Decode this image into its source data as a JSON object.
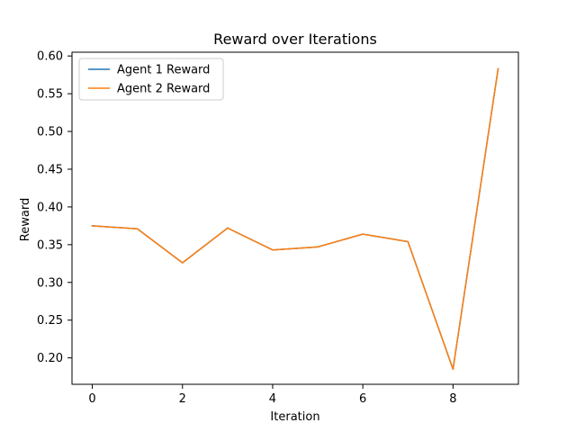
{
  "chart_data": {
    "type": "line",
    "title": "Reward over Iterations",
    "xlabel": "Iteration",
    "ylabel": "Reward",
    "xlim": [
      -0.45,
      9.45
    ],
    "ylim": [
      0.165,
      0.605
    ],
    "xticks": [
      0,
      2,
      4,
      6,
      8
    ],
    "xtick_labels": [
      "0",
      "2",
      "4",
      "6",
      "8"
    ],
    "yticks": [
      0.2,
      0.25,
      0.3,
      0.35,
      0.4,
      0.45,
      0.5,
      0.55,
      0.6
    ],
    "ytick_labels": [
      "0.20",
      "0.25",
      "0.30",
      "0.35",
      "0.40",
      "0.45",
      "0.50",
      "0.55",
      "0.60"
    ],
    "grid": false,
    "legend_position": "top-left",
    "x": [
      0,
      1,
      2,
      3,
      4,
      5,
      6,
      7,
      8,
      9
    ],
    "series": [
      {
        "name": "Agent 1 Reward",
        "color": "#1f77b4",
        "values": [
          0.375,
          0.371,
          0.326,
          0.372,
          0.343,
          0.347,
          0.364,
          0.354,
          0.185,
          0.583
        ]
      },
      {
        "name": "Agent 2 Reward",
        "color": "#ff7f0e",
        "values": [
          0.375,
          0.371,
          0.326,
          0.372,
          0.343,
          0.347,
          0.364,
          0.354,
          0.185,
          0.583
        ]
      }
    ]
  }
}
